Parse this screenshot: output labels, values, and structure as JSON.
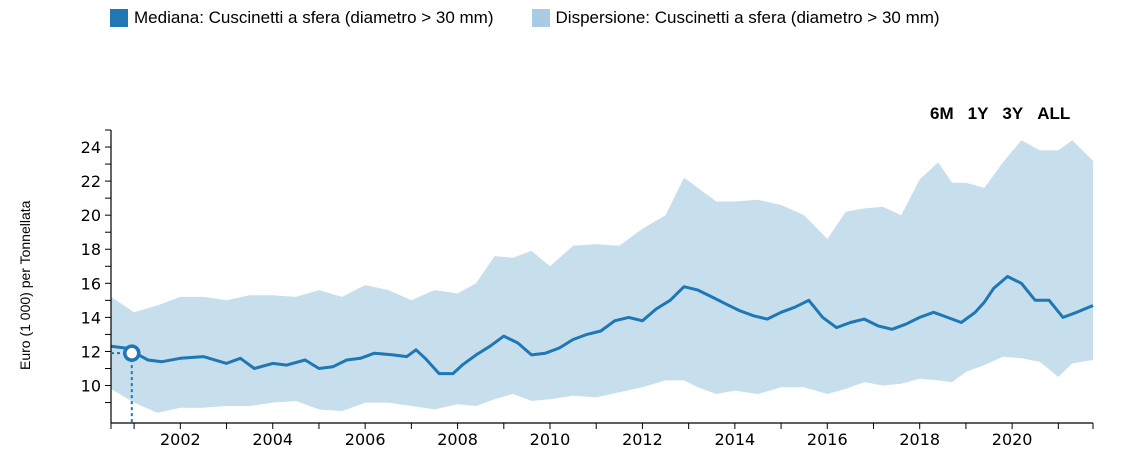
{
  "legend": {
    "median_label": "Mediana: Cuscinetti a sfera (diametro > 30 mm)",
    "dispersion_label": "Dispersione: Cuscinetti a sfera (diametro > 30 mm)"
  },
  "range_buttons": [
    "6M",
    "1Y",
    "3Y",
    "ALL"
  ],
  "colors": {
    "median": "#1f77b4",
    "dispersion": "#a9cce3"
  },
  "chart_data": {
    "type": "area",
    "ylabel": "Euro (1 000) per Tonnellata",
    "xlabel": "",
    "xlim": [
      2000.5,
      2021.75
    ],
    "ylim": [
      7.8,
      25
    ],
    "yticks": [
      10,
      12,
      14,
      16,
      18,
      20,
      22,
      24
    ],
    "xticks": [
      2002,
      2004,
      2006,
      2008,
      2010,
      2012,
      2014,
      2016,
      2018,
      2020
    ],
    "series": [
      {
        "name": "Mediana: Cuscinetti a sfera (diametro > 30 mm)",
        "kind": "line",
        "x": [
          2000.5,
          2000.8,
          2001.1,
          2001.3,
          2001.6,
          2002.0,
          2002.5,
          2003.0,
          2003.3,
          2003.6,
          2004.0,
          2004.3,
          2004.7,
          2005.0,
          2005.3,
          2005.6,
          2005.9,
          2006.2,
          2006.6,
          2006.9,
          2007.1,
          2007.3,
          2007.6,
          2007.9,
          2008.1,
          2008.4,
          2008.7,
          2009.0,
          2009.3,
          2009.6,
          2009.9,
          2010.2,
          2010.5,
          2010.8,
          2011.1,
          2011.4,
          2011.7,
          2012.0,
          2012.3,
          2012.6,
          2012.9,
          2013.2,
          2013.5,
          2013.8,
          2014.1,
          2014.4,
          2014.7,
          2015.0,
          2015.3,
          2015.6,
          2015.9,
          2016.2,
          2016.5,
          2016.8,
          2017.1,
          2017.4,
          2017.7,
          2018.0,
          2018.3,
          2018.6,
          2018.9,
          2019.2,
          2019.4,
          2019.6,
          2019.9,
          2020.2,
          2020.5,
          2020.8,
          2021.1,
          2021.4,
          2021.75
        ],
        "y": [
          12.3,
          12.2,
          11.8,
          11.5,
          11.4,
          11.6,
          11.7,
          11.3,
          11.6,
          11.0,
          11.3,
          11.2,
          11.5,
          11.0,
          11.1,
          11.5,
          11.6,
          11.9,
          11.8,
          11.7,
          12.1,
          11.6,
          10.7,
          10.7,
          11.2,
          11.8,
          12.3,
          12.9,
          12.5,
          11.8,
          11.9,
          12.2,
          12.7,
          13.0,
          13.2,
          13.8,
          14.0,
          13.8,
          14.5,
          15.0,
          15.8,
          15.6,
          15.2,
          14.8,
          14.4,
          14.1,
          13.9,
          14.3,
          14.6,
          15.0,
          14.0,
          13.4,
          13.7,
          13.9,
          13.5,
          13.3,
          13.6,
          14.0,
          14.3,
          14.0,
          13.7,
          14.3,
          14.9,
          15.7,
          16.4,
          16.0,
          15.0,
          15.0,
          14.0,
          14.3,
          14.7
        ]
      },
      {
        "name": "Dispersione: Cuscinetti a sfera (diametro > 30 mm)",
        "kind": "band",
        "x": [
          2000.5,
          2001.0,
          2001.5,
          2002.0,
          2002.5,
          2003.0,
          2003.5,
          2004.0,
          2004.5,
          2005.0,
          2005.5,
          2006.0,
          2006.5,
          2007.0,
          2007.5,
          2008.0,
          2008.4,
          2008.8,
          2009.2,
          2009.6,
          2010.0,
          2010.5,
          2011.0,
          2011.5,
          2012.0,
          2012.5,
          2012.9,
          2013.2,
          2013.6,
          2014.0,
          2014.5,
          2015.0,
          2015.5,
          2016.0,
          2016.4,
          2016.8,
          2017.2,
          2017.6,
          2018.0,
          2018.4,
          2018.7,
          2019.0,
          2019.4,
          2019.8,
          2020.2,
          2020.6,
          2021.0,
          2021.3,
          2021.75
        ],
        "upper": [
          15.2,
          14.3,
          14.7,
          15.2,
          15.2,
          15.0,
          15.3,
          15.3,
          15.2,
          15.6,
          15.2,
          15.9,
          15.6,
          15.0,
          15.6,
          15.4,
          16.0,
          17.6,
          17.5,
          17.9,
          17.0,
          18.2,
          18.3,
          18.2,
          19.2,
          20.0,
          22.2,
          21.6,
          20.8,
          20.8,
          20.9,
          20.6,
          20.0,
          18.6,
          20.2,
          20.4,
          20.5,
          20.0,
          22.1,
          23.1,
          21.9,
          21.9,
          21.6,
          23.1,
          24.4,
          23.8,
          23.8,
          24.4,
          23.2
        ],
        "lower": [
          9.8,
          9.0,
          8.4,
          8.7,
          8.7,
          8.8,
          8.8,
          9.0,
          9.1,
          8.6,
          8.5,
          9.0,
          9.0,
          8.8,
          8.6,
          8.9,
          8.8,
          9.2,
          9.5,
          9.1,
          9.2,
          9.4,
          9.3,
          9.6,
          9.9,
          10.3,
          10.3,
          9.9,
          9.5,
          9.7,
          9.5,
          9.9,
          9.9,
          9.5,
          9.8,
          10.2,
          10.0,
          10.1,
          10.4,
          10.3,
          10.2,
          10.8,
          11.2,
          11.7,
          11.6,
          11.4,
          10.5,
          11.3,
          11.5
        ]
      }
    ]
  }
}
